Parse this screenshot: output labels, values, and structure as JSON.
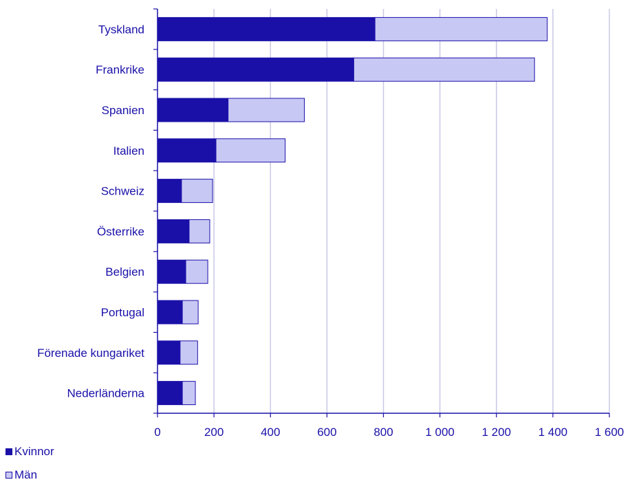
{
  "chart_data": {
    "type": "bar",
    "orientation": "horizontal",
    "stacked": true,
    "categories": [
      "Tyskland",
      "Frankrike",
      "Spanien",
      "Italien",
      "Schweiz",
      "Österrike",
      "Belgien",
      "Portugal",
      "Förenade kungariket",
      "Nederländerna"
    ],
    "series": [
      {
        "name": "Kvinnor",
        "values": [
          770,
          695,
          250,
          207,
          85,
          112,
          100,
          88,
          80,
          88
        ],
        "color": "#1a10a8"
      },
      {
        "name": "Män",
        "values": [
          610,
          640,
          270,
          245,
          110,
          73,
          78,
          56,
          62,
          46
        ],
        "color": "#c8c8f4"
      }
    ],
    "xlim": [
      0,
      1600
    ],
    "xticks": [
      0,
      200,
      400,
      600,
      800,
      1000,
      1200,
      1400,
      1600
    ],
    "xtick_labels": [
      "0",
      "200",
      "400",
      "600",
      "800",
      "1 000",
      "1 200",
      "1 400",
      "1 600"
    ],
    "grid": true,
    "legend_position": "bottom-left",
    "title": "",
    "xlabel": "",
    "ylabel": ""
  },
  "legend": {
    "kvinnor": "Kvinnor",
    "man": "Män"
  }
}
